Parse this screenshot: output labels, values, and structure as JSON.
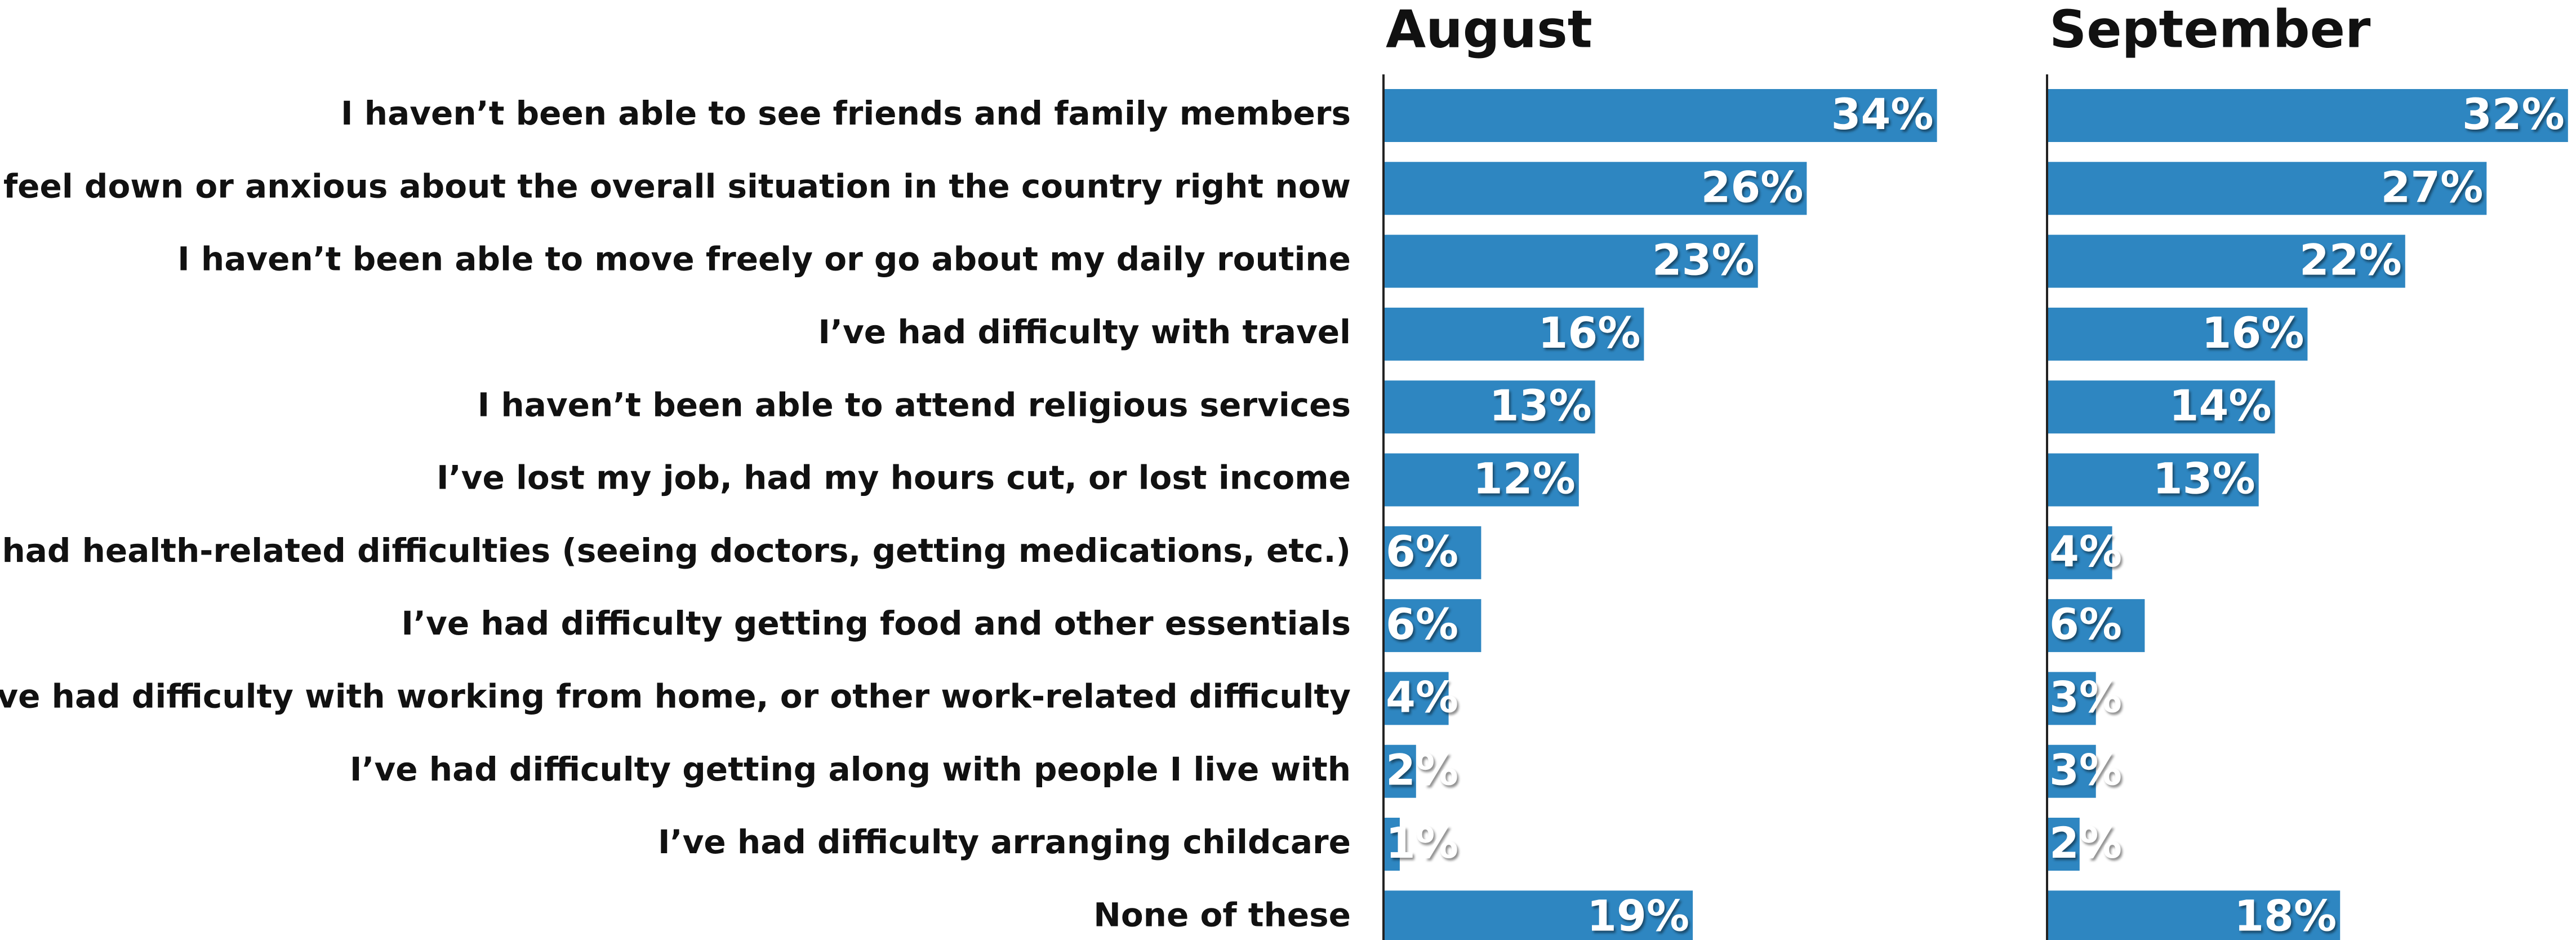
{
  "chart_data": {
    "type": "bar",
    "categories": [
      "I haven’t been able to see friends and family members",
      "I feel down or anxious about the overall situation in the country right now",
      "I haven’t been able to move freely or go about my daily routine",
      "I’ve had difficulty with travel",
      "I haven’t been able to attend religious services",
      "I’ve lost my job, had my hours cut, or lost income",
      "I’ve had health-related difficulties (seeing doctors, getting medications, etc.)",
      "I’ve had difficulty getting food and other essentials",
      "I’ve had difficulty with working from home, or other work-related difficulty",
      "I’ve had difficulty getting along with people I live with",
      "I’ve had difficulty arranging childcare",
      "None of these"
    ],
    "series": [
      {
        "name": "August",
        "color": "#2e86c1",
        "values": [
          34,
          26,
          23,
          16,
          13,
          12,
          6,
          6,
          4,
          2,
          1,
          19
        ],
        "value_labels": [
          "34%",
          "26%",
          "23%",
          "16%",
          "13%",
          "12%",
          "6%",
          "6%",
          "4%",
          "2%",
          "1%",
          "19%"
        ]
      },
      {
        "name": "September",
        "color": "#2e86c1",
        "values": [
          32,
          27,
          22,
          16,
          14,
          13,
          4,
          6,
          3,
          3,
          2,
          18
        ],
        "value_labels": [
          "32%",
          "27%",
          "22%",
          "16%",
          "14%",
          "13%",
          "4%",
          "6%",
          "3%",
          "3%",
          "2%",
          "18%"
        ]
      }
    ]
  }
}
